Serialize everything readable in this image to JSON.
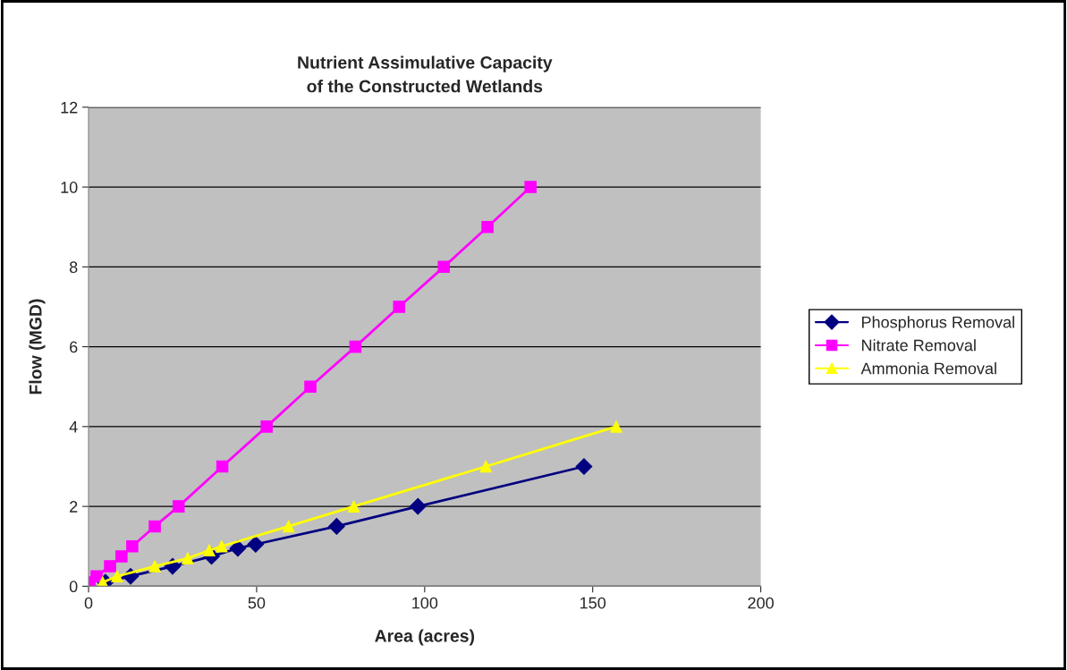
{
  "chart_data": {
    "type": "line",
    "title": "Nutrient Assimulative Capacity\nof the Constructed Wetlands",
    "xlabel": "Area (acres)",
    "ylabel": "Flow (MGD)",
    "xlim": [
      0,
      200
    ],
    "xticks": [
      0,
      50,
      100,
      150,
      200
    ],
    "ylim": [
      0,
      12
    ],
    "yticks": [
      0,
      2,
      4,
      6,
      8,
      10,
      12
    ],
    "grid": "y",
    "legend": "right",
    "series": [
      {
        "name": "Phosphorus Removal",
        "color": "#000080",
        "marker": "diamond",
        "x": [
          5,
          12.5,
          25,
          36.6,
          44.4,
          49.7,
          73.8,
          98,
          147.4
        ],
        "values": [
          0.1,
          0.25,
          0.5,
          0.75,
          0.95,
          1.05,
          1.5,
          2,
          3
        ]
      },
      {
        "name": "Nitrate Removal",
        "color": "#ff00ff",
        "marker": "square",
        "x": [
          0.3,
          2.4,
          6.4,
          9.8,
          13,
          19.7,
          26.8,
          39.8,
          53,
          66,
          79.4,
          92.4,
          105.7,
          118.7,
          131.5
        ],
        "values": [
          0.1,
          0.25,
          0.5,
          0.75,
          1,
          1.5,
          2,
          3,
          4,
          5,
          6,
          7,
          8,
          9,
          10
        ]
      },
      {
        "name": "Ammonia Removal",
        "color": "#ffff00",
        "marker": "triangle",
        "x": [
          4.2,
          8.5,
          19.7,
          29.5,
          35.9,
          39.6,
          59.5,
          78.9,
          118.2,
          157
        ],
        "values": [
          0.1,
          0.25,
          0.5,
          0.7,
          0.9,
          1,
          1.5,
          2,
          3,
          4
        ]
      }
    ]
  }
}
